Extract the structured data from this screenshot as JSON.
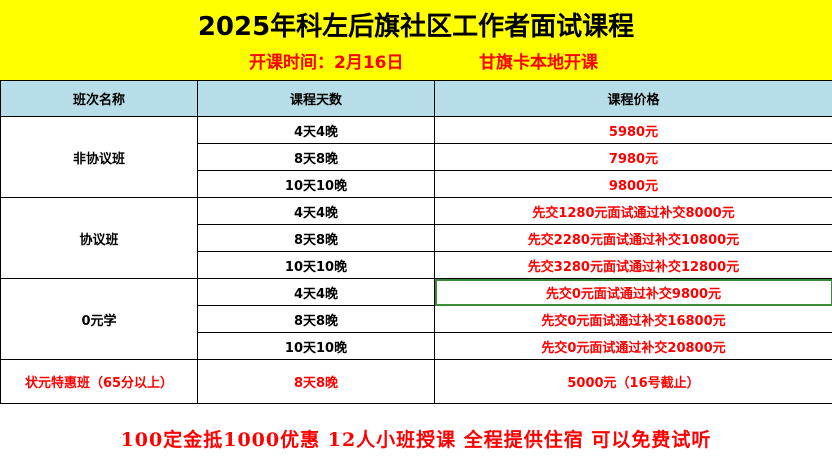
{
  "title": "2025年科左后旗社区工作者面试课程",
  "subtitle_time": "开课时间：2月16日",
  "subtitle_place": "甘旗卡本地开课",
  "table": {
    "headers": [
      "班次名称",
      "课程天数",
      "课程价格"
    ],
    "groups": [
      {
        "name": "非协议班",
        "rows": [
          {
            "days": "4天4晚",
            "price": "5980元"
          },
          {
            "days": "8天8晚",
            "price": "7980元"
          },
          {
            "days": "10天10晚",
            "price": "9800元"
          }
        ]
      },
      {
        "name": "协议班",
        "rows": [
          {
            "days": "4天4晚",
            "price": "先交1280元面试通过补交8000元"
          },
          {
            "days": "8天8晚",
            "price": "先交2280元面试通过补交10800元"
          },
          {
            "days": "10天10晚",
            "price": "先交3280元面试通过补交12800元"
          }
        ]
      },
      {
        "name": "0元学",
        "rows": [
          {
            "days": "4天4晚",
            "price": "先交0元面试通过补交9800元"
          },
          {
            "days": "8天8晚",
            "price": "先交0元面试通过补交16800元"
          },
          {
            "days": "10天10晚",
            "price": "先交0元面试通过补交20800元"
          }
        ]
      },
      {
        "name": "状元特惠班（65分以上）",
        "rows": [
          {
            "days": "8天8晚",
            "price": "5000元（16号截止）"
          }
        ]
      }
    ]
  },
  "footer": "100定金抵1000优惠   12人小班授课   全程提供住宿   可以免费试听",
  "colors": {
    "header_background": "#ffff00",
    "table_header_background": "#b7dee8",
    "accent_red": "#ff0000",
    "selection_border": "#3a8a3a"
  }
}
